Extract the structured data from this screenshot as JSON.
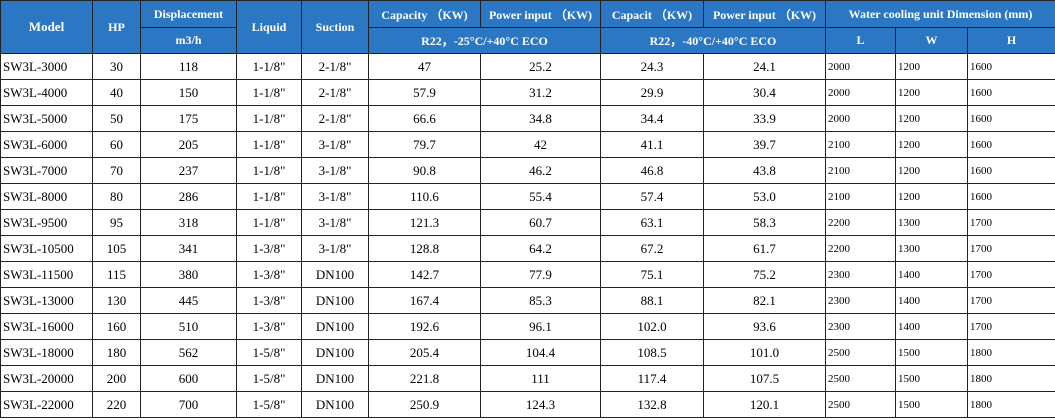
{
  "header": {
    "model": "Model",
    "hp": "HP",
    "displacement": "Displacement",
    "displacement_unit": "m3/h",
    "liquid": "Liquid",
    "suction": "Suction",
    "capacity_1": "Capacity （KW)",
    "power_1": "Power input （KW)",
    "capacity_2": "Capacit （KW)",
    "power_2": "Power input （KW)",
    "dimension": "Water cooling unit Dimension (mm)",
    "cond_1": "R22，-25°C/+40°C  ECO",
    "cond_2": "R22，-40°C/+40°C  ECO",
    "dim_l": "L",
    "dim_w": "W",
    "dim_h": "H"
  },
  "rows": [
    {
      "model": "SW3L-3000",
      "hp": "30",
      "disp": "118",
      "liquid": "1-1/8\"",
      "suction": "2-1/8\"",
      "cap1": "47",
      "pow1": "25.2",
      "cap2": "24.3",
      "pow2": "24.1",
      "l": "2000",
      "w": "1200",
      "h": "1600"
    },
    {
      "model": "SW3L-4000",
      "hp": "40",
      "disp": "150",
      "liquid": "1-1/8\"",
      "suction": "2-1/8\"",
      "cap1": "57.9",
      "pow1": "31.2",
      "cap2": "29.9",
      "pow2": "30.4",
      "l": "2000",
      "w": "1200",
      "h": "1600"
    },
    {
      "model": "SW3L-5000",
      "hp": "50",
      "disp": "175",
      "liquid": "1-1/8\"",
      "suction": "2-1/8\"",
      "cap1": "66.6",
      "pow1": "34.8",
      "cap2": "34.4",
      "pow2": "33.9",
      "l": "2000",
      "w": "1200",
      "h": "1600"
    },
    {
      "model": "SW3L-6000",
      "hp": "60",
      "disp": "205",
      "liquid": "1-1/8\"",
      "suction": "3-1/8\"",
      "cap1": "79.7",
      "pow1": "42",
      "cap2": "41.1",
      "pow2": "39.7",
      "l": "2100",
      "w": "1200",
      "h": "1600"
    },
    {
      "model": "SW3L-7000",
      "hp": "70",
      "disp": "237",
      "liquid": "1-1/8\"",
      "suction": "3-1/8\"",
      "cap1": "90.8",
      "pow1": "46.2",
      "cap2": "46.8",
      "pow2": "43.8",
      "l": "2100",
      "w": "1200",
      "h": "1600"
    },
    {
      "model": "SW3L-8000",
      "hp": "80",
      "disp": "286",
      "liquid": "1-1/8\"",
      "suction": "3-1/8\"",
      "cap1": "110.6",
      "pow1": "55.4",
      "cap2": "57.4",
      "pow2": "53.0",
      "l": "2100",
      "w": "1200",
      "h": "1600"
    },
    {
      "model": "SW3L-9500",
      "hp": "95",
      "disp": "318",
      "liquid": "1-1/8\"",
      "suction": "3-1/8\"",
      "cap1": "121.3",
      "pow1": "60.7",
      "cap2": "63.1",
      "pow2": "58.3",
      "l": "2200",
      "w": "1300",
      "h": "1700"
    },
    {
      "model": "SW3L-10500",
      "hp": "105",
      "disp": "341",
      "liquid": "1-3/8\"",
      "suction": "3-1/8\"",
      "cap1": "128.8",
      "pow1": "64.2",
      "cap2": "67.2",
      "pow2": "61.7",
      "l": "2200",
      "w": "1300",
      "h": "1700"
    },
    {
      "model": "SW3L-11500",
      "hp": "115",
      "disp": "380",
      "liquid": "1-3/8\"",
      "suction": "DN100",
      "cap1": "142.7",
      "pow1": "77.9",
      "cap2": "75.1",
      "pow2": "75.2",
      "l": "2300",
      "w": "1400",
      "h": "1700"
    },
    {
      "model": "SW3L-13000",
      "hp": "130",
      "disp": "445",
      "liquid": "1-3/8\"",
      "suction": "DN100",
      "cap1": "167.4",
      "pow1": "85.3",
      "cap2": "88.1",
      "pow2": "82.1",
      "l": "2300",
      "w": "1400",
      "h": "1700"
    },
    {
      "model": "SW3L-16000",
      "hp": "160",
      "disp": "510",
      "liquid": "1-3/8\"",
      "suction": "DN100",
      "cap1": "192.6",
      "pow1": "96.1",
      "cap2": "102.0",
      "pow2": "93.6",
      "l": "2300",
      "w": "1400",
      "h": "1700"
    },
    {
      "model": "SW3L-18000",
      "hp": "180",
      "disp": "562",
      "liquid": "1-5/8\"",
      "suction": "DN100",
      "cap1": "205.4",
      "pow1": "104.4",
      "cap2": "108.5",
      "pow2": "101.0",
      "l": "2500",
      "w": "1500",
      "h": "1800"
    },
    {
      "model": "SW3L-20000",
      "hp": "200",
      "disp": "600",
      "liquid": "1-5/8\"",
      "suction": "DN100",
      "cap1": "221.8",
      "pow1": "111",
      "cap2": "117.4",
      "pow2": "107.5",
      "l": "2500",
      "w": "1500",
      "h": "1800"
    },
    {
      "model": "SW3L-22000",
      "hp": "220",
      "disp": "700",
      "liquid": "1-5/8\"",
      "suction": "DN100",
      "cap1": "250.9",
      "pow1": "124.3",
      "cap2": "132.8",
      "pow2": "120.1",
      "l": "2500",
      "w": "1500",
      "h": "1800"
    }
  ]
}
